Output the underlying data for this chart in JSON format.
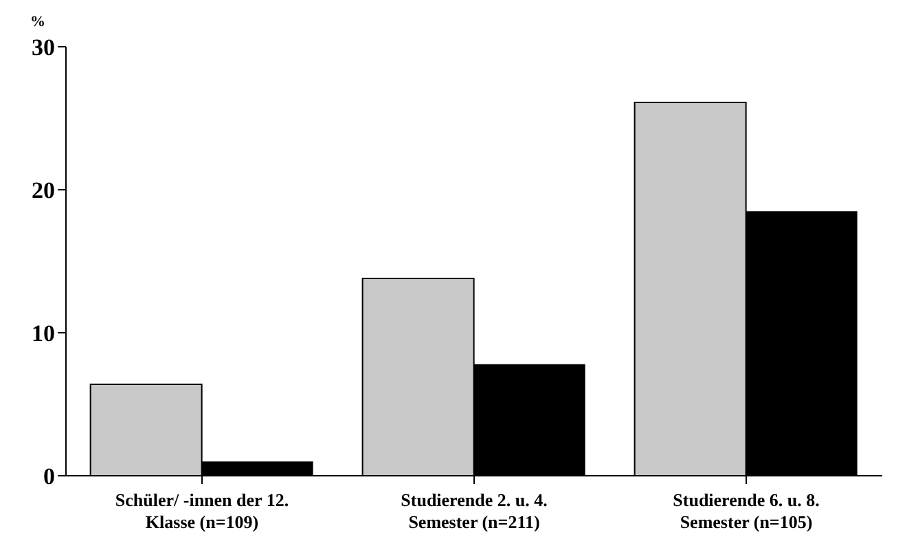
{
  "chart_data": {
    "type": "bar",
    "ylabel": "%",
    "categories": [
      "Schüler/ -innen der 12. Klasse (n=109)",
      "Studierende 2. u. 4. Semester (n=211)",
      "Studierende 6. u. 8. Semester (n=105)"
    ],
    "series": [
      {
        "color": "#c8c8c8",
        "values": [
          6.4,
          13.8,
          26.1
        ]
      },
      {
        "color": "#000000",
        "values": [
          1.0,
          7.8,
          18.5
        ]
      }
    ],
    "ylim": [
      0,
      30
    ],
    "yticks": [
      0,
      10,
      20,
      30
    ],
    "grid": false,
    "legend": false
  }
}
